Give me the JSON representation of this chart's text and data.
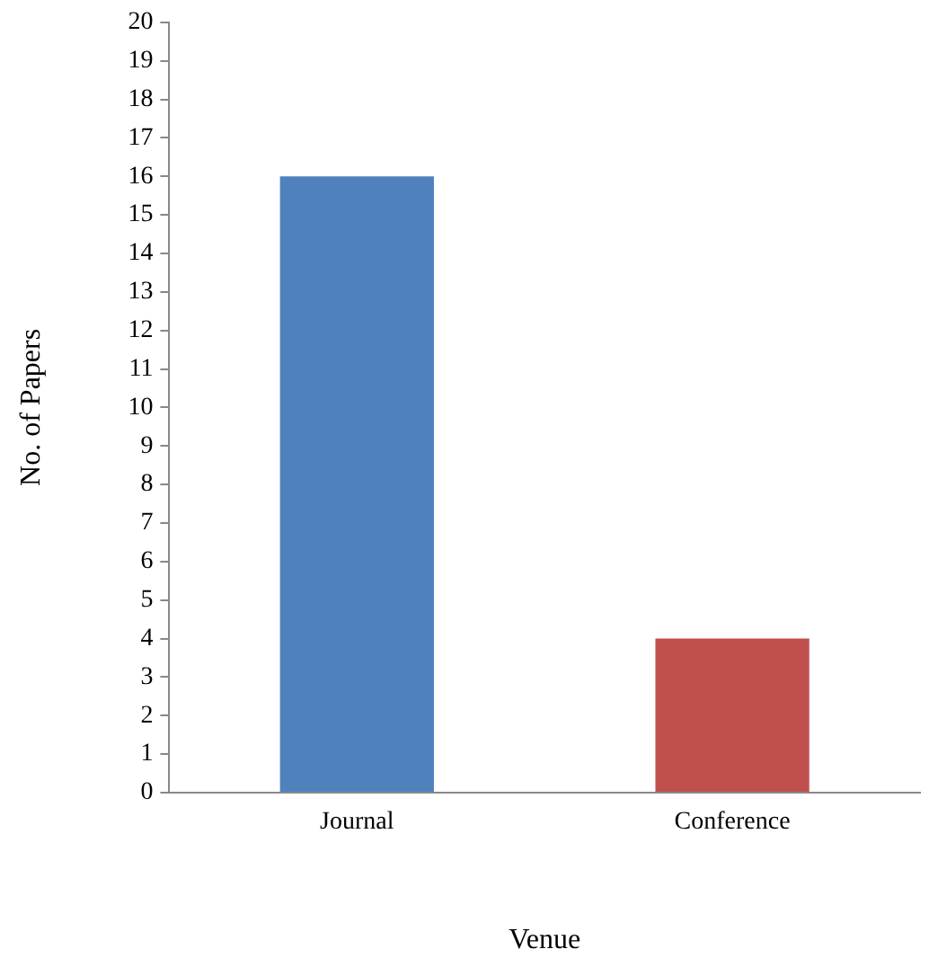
{
  "chart_data": {
    "type": "bar",
    "xlabel": "Venue",
    "ylabel": "No. of Papers",
    "categories": [
      "Journal",
      "Conference"
    ],
    "values": [
      16,
      4
    ],
    "colors": [
      "#4f81bd",
      "#c0504d"
    ],
    "ylim": [
      0,
      20
    ],
    "yticks": [
      0,
      1,
      2,
      3,
      4,
      5,
      6,
      7,
      8,
      9,
      10,
      11,
      12,
      13,
      14,
      15,
      16,
      17,
      18,
      19,
      20
    ],
    "grid": false,
    "legend": false
  }
}
